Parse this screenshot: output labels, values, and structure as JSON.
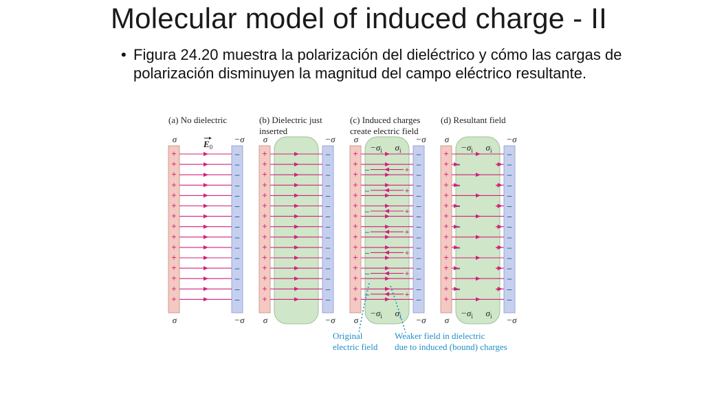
{
  "slide": {
    "title": "Molecular model of induced charge - II",
    "bullet": "Figura 24.20 muestra la polarización del dieléctrico y cómo las cargas de polarización disminuyen la magnitud del campo eléctrico resultante."
  },
  "figure": {
    "panels": [
      {
        "tag": "(a)",
        "caption": [
          "No dielectric"
        ]
      },
      {
        "tag": "(b)",
        "caption": [
          "Dielectric just",
          "inserted"
        ]
      },
      {
        "tag": "(c)",
        "caption": [
          "Induced charges",
          "create electric field"
        ]
      },
      {
        "tag": "(d)",
        "caption": [
          "Resultant field"
        ]
      }
    ],
    "sigma": "σ",
    "minus_sigma": "−σ",
    "sigma_i": "σ",
    "minus_sigma_i": "−σ",
    "sub_i": "i",
    "e0_symbol": "E",
    "e0_sub": "0",
    "annotations": {
      "original": [
        "Original",
        "electric field"
      ],
      "weaker": [
        "Weaker field in dielectric",
        "due to induced (bound) charges"
      ]
    },
    "colors": {
      "positive_plate": "#f3c9c2",
      "negative_plate": "#c6d0ee",
      "dielectric": "#cfe6c9",
      "field_line": "#d4207a",
      "plus": "#d4207a",
      "minus": "#1a5c9a",
      "annotation": "#1f8fc7"
    }
  }
}
